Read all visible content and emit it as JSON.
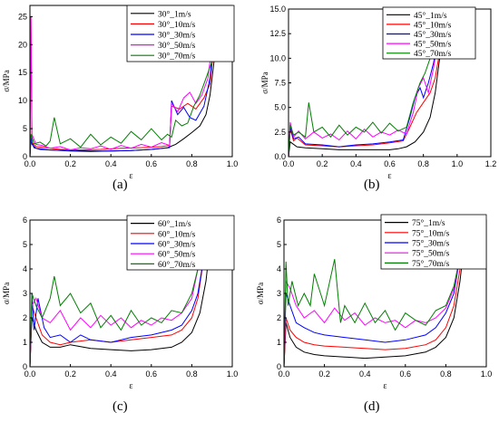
{
  "captions": [
    "(a)",
    "(b)",
    "(c)",
    "(d)"
  ],
  "colors": {
    "1": "#000000",
    "10": "#ff0000",
    "30": "#0000ff",
    "50": "#ff00ff",
    "70": "#008000"
  },
  "chart_data": [
    {
      "type": "line",
      "caption": "(a)",
      "xlabel": "ε",
      "ylabel": "σ/MPa",
      "xlim": [
        0,
        1.0
      ],
      "ylim": [
        0,
        27
      ],
      "xticks": [
        "0.0",
        "0.2",
        "0.4",
        "0.6",
        "0.8",
        "1.0"
      ],
      "yticks": [
        "0",
        "5",
        "10",
        "15",
        "20",
        "25"
      ],
      "legend_position": "top-right",
      "series": [
        {
          "name": "30°_1m/s",
          "color": "#000000",
          "x": [
            0,
            0.005,
            0.02,
            0.05,
            0.1,
            0.2,
            0.3,
            0.4,
            0.5,
            0.6,
            0.68,
            0.72,
            0.76,
            0.8,
            0.84,
            0.87,
            0.89,
            0.91,
            0.93,
            0.94
          ],
          "y": [
            0,
            3,
            1.6,
            1.3,
            1.2,
            1.1,
            1.0,
            1.0,
            1.1,
            1.3,
            1.6,
            2.2,
            3.2,
            4.3,
            5.5,
            7.5,
            11,
            17,
            24,
            27
          ]
        },
        {
          "name": "30°_10m/s",
          "color": "#ff0000",
          "x": [
            0,
            0.005,
            0.01,
            0.03,
            0.08,
            0.15,
            0.25,
            0.35,
            0.45,
            0.55,
            0.65,
            0.69,
            0.7,
            0.74,
            0.78,
            0.82,
            0.86,
            0.89,
            0.91,
            0.93
          ],
          "y": [
            0,
            25,
            2.5,
            1.8,
            1.6,
            1.3,
            1.2,
            1.3,
            1.5,
            1.6,
            1.8,
            2.0,
            9.0,
            8.5,
            9.5,
            8.5,
            10.5,
            13,
            20,
            27
          ]
        },
        {
          "name": "30°_30m/s",
          "color": "#0000ff",
          "x": [
            0,
            0.005,
            0.01,
            0.03,
            0.1,
            0.2,
            0.3,
            0.4,
            0.5,
            0.6,
            0.69,
            0.7,
            0.73,
            0.76,
            0.79,
            0.82,
            0.86,
            0.89,
            0.91,
            0.93
          ],
          "y": [
            0,
            3.5,
            2.2,
            1.5,
            1.2,
            1.0,
            0.9,
            1.0,
            1.1,
            1.3,
            1.6,
            10,
            7.5,
            8.8,
            7.0,
            6.5,
            9.0,
            14,
            21,
            27
          ]
        },
        {
          "name": "30°_50m/s",
          "color": "#ff00ff",
          "x": [
            0,
            0.005,
            0.01,
            0.03,
            0.06,
            0.1,
            0.15,
            0.2,
            0.25,
            0.3,
            0.35,
            0.4,
            0.45,
            0.5,
            0.55,
            0.6,
            0.65,
            0.69,
            0.7,
            0.73,
            0.76,
            0.79,
            0.82,
            0.85,
            0.88,
            0.9,
            0.92
          ],
          "y": [
            0,
            25,
            4,
            2.2,
            2.0,
            1.5,
            1.8,
            1.2,
            1.6,
            1.4,
            1.9,
            1.3,
            2.0,
            1.5,
            2.2,
            1.7,
            2.5,
            2.0,
            9.5,
            8.0,
            10.5,
            11.5,
            9.5,
            11,
            14,
            20,
            27
          ]
        },
        {
          "name": "30°_70m/s",
          "color": "#008000",
          "x": [
            0,
            0.005,
            0.02,
            0.05,
            0.08,
            0.1,
            0.12,
            0.15,
            0.2,
            0.25,
            0.3,
            0.35,
            0.4,
            0.45,
            0.5,
            0.55,
            0.6,
            0.65,
            0.68,
            0.7,
            0.72,
            0.75,
            0.78,
            0.81,
            0.84,
            0.87,
            0.9,
            0.92,
            0.93
          ],
          "y": [
            0,
            4,
            2.3,
            2.6,
            1.9,
            2.8,
            7.0,
            2.3,
            3.2,
            1.7,
            4.0,
            2.1,
            3.5,
            2.4,
            4.5,
            3.0,
            5.0,
            3.0,
            4.0,
            3.5,
            6.5,
            5.5,
            6.0,
            9.0,
            11,
            14,
            17,
            22,
            27
          ]
        }
      ]
    },
    {
      "type": "line",
      "caption": "(b)",
      "xlabel": "ε",
      "ylabel": "σ/MPa",
      "xlim": [
        0,
        1.2
      ],
      "ylim": [
        0,
        15
      ],
      "xticks": [
        "0.0",
        "0.2",
        "0.4",
        "0.6",
        "0.8",
        "1.0",
        "1.2"
      ],
      "yticks": [
        "0.0",
        "2.5",
        "5.0",
        "7.5",
        "10.0",
        "12.5",
        "15.0"
      ],
      "legend_position": "top-right",
      "series": [
        {
          "name": "45°_1m/s",
          "color": "#000000",
          "x": [
            0,
            0.01,
            0.05,
            0.1,
            0.2,
            0.3,
            0.4,
            0.5,
            0.6,
            0.65,
            0.7,
            0.75,
            0.8,
            0.84,
            0.87,
            0.9,
            0.92
          ],
          "y": [
            0,
            1.5,
            1.0,
            0.9,
            0.8,
            0.7,
            0.7,
            0.7,
            0.7,
            0.8,
            1.0,
            1.5,
            2.5,
            4.0,
            6.5,
            10.5,
            15
          ]
        },
        {
          "name": "45°_10m/s",
          "color": "#ff0000",
          "x": [
            0,
            0.01,
            0.03,
            0.05,
            0.1,
            0.2,
            0.3,
            0.4,
            0.5,
            0.6,
            0.68,
            0.72,
            0.76,
            0.8,
            0.84,
            0.87,
            0.9,
            0.92
          ],
          "y": [
            0,
            2.8,
            1.6,
            1.9,
            1.2,
            1.1,
            1.0,
            1.1,
            1.2,
            1.4,
            1.6,
            3.0,
            4.5,
            5.5,
            6.5,
            8.0,
            11,
            15
          ]
        },
        {
          "name": "45°_30m/s",
          "color": "#0000ff",
          "x": [
            0,
            0.01,
            0.03,
            0.06,
            0.1,
            0.2,
            0.3,
            0.4,
            0.5,
            0.6,
            0.68,
            0.72,
            0.75,
            0.78,
            0.8,
            0.83,
            0.86,
            0.89,
            0.91
          ],
          "y": [
            0,
            3.0,
            1.8,
            2.0,
            1.3,
            1.2,
            1.0,
            1.2,
            1.3,
            1.5,
            1.7,
            4.0,
            6.0,
            7.0,
            6.0,
            7.5,
            9.5,
            12.5,
            15
          ]
        },
        {
          "name": "45°_50m/s",
          "color": "#ff00ff",
          "x": [
            0,
            0.01,
            0.03,
            0.06,
            0.1,
            0.15,
            0.2,
            0.25,
            0.3,
            0.35,
            0.4,
            0.45,
            0.5,
            0.55,
            0.6,
            0.65,
            0.7,
            0.74,
            0.77,
            0.8,
            0.83,
            0.86,
            0.89,
            0.91
          ],
          "y": [
            0,
            3.5,
            2.0,
            2.6,
            1.8,
            2.5,
            1.9,
            2.3,
            1.7,
            2.6,
            1.8,
            2.8,
            2.0,
            2.5,
            2.2,
            2.7,
            2.3,
            4.5,
            7.0,
            8.0,
            6.5,
            9.0,
            12,
            15
          ]
        },
        {
          "name": "45°_70m/s",
          "color": "#008000",
          "x": [
            0,
            0.01,
            0.03,
            0.06,
            0.1,
            0.12,
            0.15,
            0.2,
            0.25,
            0.3,
            0.35,
            0.4,
            0.45,
            0.5,
            0.55,
            0.6,
            0.65,
            0.7,
            0.74,
            0.78,
            0.81,
            0.84,
            0.87,
            0.9,
            0.92
          ],
          "y": [
            0,
            3.2,
            2.2,
            2.5,
            2.0,
            5.5,
            2.5,
            3.0,
            2.0,
            3.2,
            2.2,
            3.0,
            2.5,
            3.5,
            2.4,
            3.4,
            2.6,
            3.0,
            5.5,
            7.5,
            8.5,
            10,
            12,
            13.5,
            15
          ]
        }
      ]
    },
    {
      "type": "line",
      "caption": "(c)",
      "xlabel": "ε",
      "ylabel": "σ/MPa",
      "xlim": [
        0,
        1.0
      ],
      "ylim": [
        0,
        6
      ],
      "xticks": [
        "0.0",
        "0.2",
        "0.4",
        "0.6",
        "0.8",
        "1.0"
      ],
      "yticks": [
        "0",
        "1",
        "2",
        "3",
        "4",
        "5",
        "6"
      ],
      "legend_position": "top-right",
      "series": [
        {
          "name": "60°_1m/s",
          "color": "#000000",
          "x": [
            0,
            0.01,
            0.03,
            0.06,
            0.1,
            0.15,
            0.2,
            0.3,
            0.4,
            0.5,
            0.6,
            0.7,
            0.75,
            0.8,
            0.84,
            0.87,
            0.89,
            0.9
          ],
          "y": [
            0,
            2.0,
            1.5,
            1.0,
            0.8,
            0.8,
            0.9,
            0.75,
            0.7,
            0.65,
            0.7,
            0.8,
            1.0,
            1.4,
            2.2,
            3.5,
            5.0,
            6.0
          ]
        },
        {
          "name": "60°_10m/s",
          "color": "#ff0000",
          "x": [
            0,
            0.01,
            0.03,
            0.06,
            0.1,
            0.15,
            0.2,
            0.3,
            0.4,
            0.5,
            0.6,
            0.7,
            0.75,
            0.8,
            0.83,
            0.86,
            0.88
          ],
          "y": [
            0,
            2.5,
            2.0,
            1.3,
            1.0,
            0.9,
            1.0,
            1.1,
            1.0,
            1.1,
            1.2,
            1.3,
            1.5,
            2.0,
            2.8,
            4.5,
            6.0
          ]
        },
        {
          "name": "60°_30m/s",
          "color": "#0000ff",
          "x": [
            0,
            0.01,
            0.02,
            0.04,
            0.07,
            0.1,
            0.15,
            0.2,
            0.25,
            0.3,
            0.4,
            0.5,
            0.6,
            0.7,
            0.75,
            0.8,
            0.83,
            0.86,
            0.88
          ],
          "y": [
            0,
            3.0,
            1.5,
            2.8,
            1.6,
            1.2,
            1.3,
            1.0,
            1.3,
            1.1,
            1.0,
            1.2,
            1.3,
            1.5,
            1.7,
            2.3,
            3.0,
            4.5,
            6.0
          ]
        },
        {
          "name": "60°_50m/s",
          "color": "#ff00ff",
          "x": [
            0,
            0.01,
            0.03,
            0.06,
            0.1,
            0.15,
            0.2,
            0.25,
            0.3,
            0.35,
            0.4,
            0.45,
            0.5,
            0.55,
            0.6,
            0.65,
            0.7,
            0.75,
            0.8,
            0.83,
            0.86
          ],
          "y": [
            0,
            2.5,
            2.8,
            2.0,
            1.8,
            2.3,
            1.5,
            2.0,
            1.6,
            2.1,
            1.7,
            2.0,
            1.6,
            1.9,
            1.7,
            2.0,
            1.9,
            2.2,
            2.8,
            4.0,
            6.0
          ]
        },
        {
          "name": "60°_70m/s",
          "color": "#008000",
          "x": [
            0,
            0.01,
            0.03,
            0.06,
            0.1,
            0.12,
            0.15,
            0.2,
            0.25,
            0.3,
            0.35,
            0.4,
            0.45,
            0.5,
            0.55,
            0.6,
            0.65,
            0.7,
            0.75,
            0.8,
            0.83,
            0.86
          ],
          "y": [
            0,
            3.0,
            2.5,
            2.0,
            2.8,
            3.7,
            2.5,
            3.0,
            2.2,
            2.6,
            1.6,
            2.1,
            1.5,
            2.3,
            1.7,
            2.0,
            1.8,
            2.3,
            2.2,
            3.0,
            4.0,
            6.0
          ]
        }
      ]
    },
    {
      "type": "line",
      "caption": "(d)",
      "xlabel": "ε",
      "ylabel": "σ/MPa",
      "xlim": [
        0,
        1.0
      ],
      "ylim": [
        0,
        6
      ],
      "xticks": [
        "0.0",
        "0.2",
        "0.4",
        "0.6",
        "0.8",
        "1.0"
      ],
      "yticks": [
        "0",
        "1",
        "2",
        "3",
        "4",
        "5",
        "6"
      ],
      "legend_position": "top-right",
      "series": [
        {
          "name": "75°_1m/s",
          "color": "#000000",
          "x": [
            0,
            0.01,
            0.03,
            0.06,
            0.1,
            0.15,
            0.2,
            0.3,
            0.4,
            0.5,
            0.6,
            0.7,
            0.75,
            0.8,
            0.84,
            0.87,
            0.89,
            0.9
          ],
          "y": [
            0,
            1.8,
            1.2,
            0.8,
            0.6,
            0.5,
            0.45,
            0.4,
            0.35,
            0.4,
            0.45,
            0.6,
            0.8,
            1.2,
            2.0,
            3.5,
            5.0,
            6.0
          ]
        },
        {
          "name": "75°_10m/s",
          "color": "#ff0000",
          "x": [
            0,
            0.01,
            0.03,
            0.06,
            0.1,
            0.15,
            0.2,
            0.3,
            0.4,
            0.5,
            0.6,
            0.7,
            0.75,
            0.8,
            0.84,
            0.87,
            0.89
          ],
          "y": [
            0,
            2.0,
            1.5,
            1.2,
            1.0,
            0.9,
            0.85,
            0.8,
            0.75,
            0.7,
            0.75,
            0.9,
            1.1,
            1.6,
            2.5,
            4.0,
            6.0
          ]
        },
        {
          "name": "75°_30m/s",
          "color": "#0000ff",
          "x": [
            0,
            0.01,
            0.03,
            0.06,
            0.1,
            0.15,
            0.2,
            0.3,
            0.4,
            0.5,
            0.6,
            0.7,
            0.75,
            0.8,
            0.84,
            0.87,
            0.89
          ],
          "y": [
            0,
            3.0,
            2.5,
            1.8,
            1.6,
            1.4,
            1.3,
            1.2,
            1.1,
            1.0,
            1.1,
            1.3,
            1.6,
            2.2,
            3.0,
            4.5,
            6.0
          ]
        },
        {
          "name": "75°_50m/s",
          "color": "#ff00ff",
          "x": [
            0,
            0.01,
            0.03,
            0.06,
            0.1,
            0.15,
            0.2,
            0.25,
            0.3,
            0.35,
            0.4,
            0.45,
            0.5,
            0.55,
            0.6,
            0.65,
            0.7,
            0.75,
            0.8,
            0.84,
            0.87,
            0.89
          ],
          "y": [
            0,
            3.5,
            3.2,
            2.5,
            2.0,
            2.3,
            1.8,
            2.4,
            1.9,
            2.2,
            1.7,
            2.0,
            1.8,
            1.9,
            1.6,
            1.9,
            1.8,
            2.0,
            2.4,
            3.2,
            4.5,
            6.0
          ]
        },
        {
          "name": "75°_70m/s",
          "color": "#008000",
          "x": [
            0,
            0.01,
            0.02,
            0.04,
            0.07,
            0.1,
            0.13,
            0.15,
            0.2,
            0.25,
            0.28,
            0.3,
            0.35,
            0.4,
            0.45,
            0.5,
            0.55,
            0.6,
            0.65,
            0.7,
            0.75,
            0.8,
            0.84,
            0.87,
            0.89
          ],
          "y": [
            0,
            4.3,
            2.5,
            3.5,
            2.5,
            3.0,
            2.5,
            3.8,
            2.5,
            4.4,
            1.8,
            2.5,
            1.8,
            2.6,
            1.8,
            2.3,
            1.5,
            2.2,
            1.9,
            1.7,
            2.3,
            2.5,
            3.3,
            4.5,
            6.0
          ]
        }
      ]
    }
  ]
}
